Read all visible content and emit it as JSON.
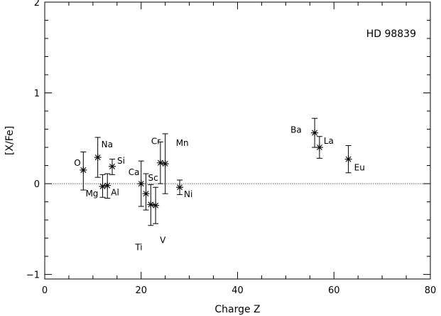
{
  "chart_data": {
    "type": "scatter",
    "title": "",
    "annotation": "HD 98839",
    "xlabel": "Charge Z",
    "ylabel": "[X/Fe]",
    "xlim": [
      0,
      80
    ],
    "ylim": [
      -1.05,
      2
    ],
    "xticks": [
      0,
      20,
      40,
      60,
      80
    ],
    "yticks": [
      -1,
      0,
      1,
      2
    ],
    "reference_line_y": 0,
    "grid": false,
    "marker": "asterisk",
    "points": [
      {
        "label": "O",
        "z": 8,
        "y": 0.15,
        "err_low": 0.22,
        "err_high": 0.2
      },
      {
        "label": "Na",
        "z": 11,
        "y": 0.29,
        "err_low": 0.22,
        "err_high": 0.22
      },
      {
        "label": "Mg",
        "z": 12,
        "y": -0.03,
        "err_low": 0.12,
        "err_high": 0.13
      },
      {
        "label": "Al",
        "z": 13,
        "y": -0.02,
        "err_low": 0.14,
        "err_high": 0.13
      },
      {
        "label": "Si",
        "z": 14,
        "y": 0.19,
        "err_low": 0.09,
        "err_high": 0.08
      },
      {
        "label": "Ca",
        "z": 20,
        "y": 0.0,
        "err_low": 0.25,
        "err_high": 0.25
      },
      {
        "label": "Sc",
        "z": 21,
        "y": -0.11,
        "err_low": 0.18,
        "err_high": 0.22
      },
      {
        "label": "Ti",
        "z": 22,
        "y": -0.23,
        "err_low": 0.23,
        "err_high": 0.22
      },
      {
        "label": "V",
        "z": 23,
        "y": -0.24,
        "err_low": 0.2,
        "err_high": 0.2
      },
      {
        "label": "Cr",
        "z": 24,
        "y": 0.23,
        "err_low": 0.23,
        "err_high": 0.23
      },
      {
        "label": "Mn",
        "z": 25,
        "y": 0.22,
        "err_low": 0.33,
        "err_high": 0.33
      },
      {
        "label": "Ni",
        "z": 28,
        "y": -0.04,
        "err_low": 0.08,
        "err_high": 0.08
      },
      {
        "label": "Ba",
        "z": 56,
        "y": 0.56,
        "err_low": 0.16,
        "err_high": 0.16
      },
      {
        "label": "La",
        "z": 57,
        "y": 0.4,
        "err_low": 0.12,
        "err_high": 0.12
      },
      {
        "label": "Eu",
        "z": 63,
        "y": 0.27,
        "err_low": 0.15,
        "err_high": 0.15
      }
    ]
  }
}
